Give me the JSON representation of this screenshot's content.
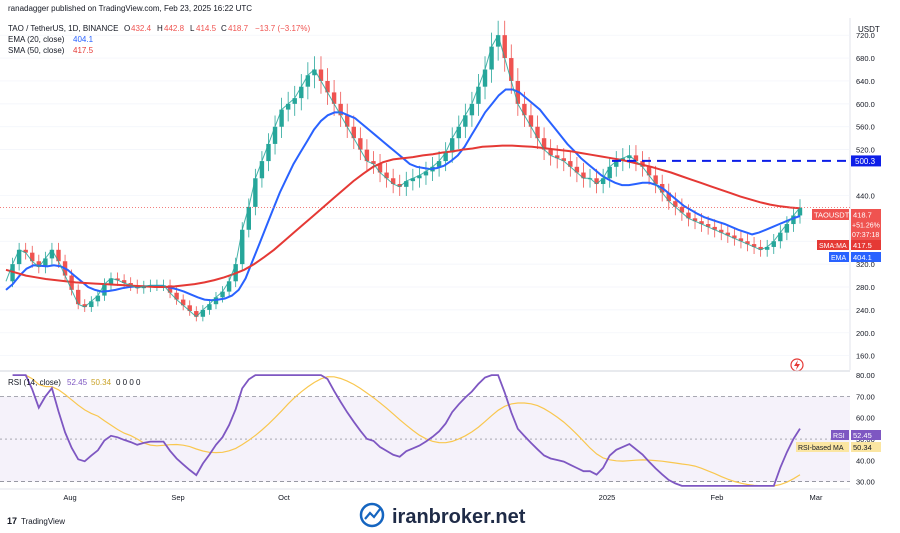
{
  "header": {
    "published": "ranadagger published on TradingView.com, Feb 23, 2025 16:22 UTC",
    "symbol_line": "TAO / TetherUS, 1D, BINANCE",
    "ohlc": {
      "o_label": "O",
      "o": "432.4",
      "h_label": "H",
      "h": "442.8",
      "l_label": "L",
      "l": "414.5",
      "c_label": "C",
      "c": "418.7",
      "change": "−13.7 (−3.17%)"
    },
    "ema_label": "EMA (20, close)",
    "ema_value": "404.1",
    "sma_label": "SMA (50, close)",
    "sma_value": "417.5",
    "currency": "USDT"
  },
  "price_axis": {
    "ticks": [
      "720.0",
      "680.0",
      "640.0",
      "600.0",
      "560.0",
      "520.0",
      "440.0",
      "400.0",
      "360.0",
      "320.0",
      "280.0",
      "240.0",
      "200.0",
      "160.0"
    ],
    "tick_values": [
      720,
      680,
      640,
      600,
      560,
      520,
      440,
      400,
      360,
      320,
      280,
      240,
      200,
      160
    ],
    "range": [
      135,
      750
    ]
  },
  "labels": {
    "level": "500.3",
    "level_value": 500.3,
    "symbol_tag": "TAOUSDT",
    "last_price": "418.7",
    "last_change": "+51.26%",
    "countdown": "07:37:18",
    "sma_tag": "SMA:MA",
    "sma_val": "417.5",
    "ema_tag": "EMA",
    "ema_val": "404.1",
    "rsi_tag": "RSI",
    "rsi_val": "52.45",
    "rsima_tag": "RSI-based MA",
    "rsima_val": "50.34"
  },
  "rsi_header": {
    "label": "RSI (14, close)",
    "rsi": "52.45",
    "ma": "50.34",
    "zeros": "0  0  0  0"
  },
  "rsi_axis": {
    "ticks": [
      "80.00",
      "70.00",
      "60.00",
      "50.00",
      "40.00",
      "30.00"
    ],
    "tick_values": [
      80,
      70,
      60,
      50,
      40,
      30
    ],
    "range": [
      27,
      81
    ]
  },
  "time_axis": {
    "labels": [
      "Aug",
      "Sep",
      "Oct",
      "2025",
      "Feb",
      "Mar"
    ]
  },
  "footer": {
    "brand": "TradingView",
    "watermark": "iranbroker.net"
  },
  "chart_data": {
    "type": "line",
    "title": "TAO / TetherUS, 1D, BINANCE",
    "x_ticks": [
      "Aug",
      "Sep",
      "Oct",
      "2025",
      "Feb",
      "Mar"
    ],
    "ylim": [
      135,
      750
    ],
    "horizontal_level": 500.3,
    "series": [
      {
        "name": "TAOUSDT",
        "color": "#26a69a",
        "values": [
          290,
          320,
          345,
          340,
          325,
          315,
          330,
          345,
          325,
          300,
          275,
          250,
          245,
          255,
          265,
          285,
          295,
          292,
          287,
          283,
          278,
          281,
          283,
          283,
          283,
          270,
          258,
          248,
          238,
          228,
          240,
          250,
          262,
          272,
          290,
          320,
          380,
          420,
          470,
          500,
          530,
          560,
          590,
          600,
          610,
          630,
          650,
          660,
          640,
          620,
          600,
          580,
          560,
          540,
          520,
          500,
          495,
          480,
          470,
          460,
          455,
          465,
          470,
          475,
          482,
          490,
          500,
          515,
          540,
          560,
          580,
          600,
          630,
          660,
          700,
          720,
          680,
          640,
          600,
          580,
          560,
          540,
          520,
          510,
          505,
          500,
          490,
          480,
          470,
          470,
          460,
          470,
          490,
          500,
          505,
          510,
          500,
          490,
          475,
          460,
          445,
          430,
          420,
          410,
          400,
          395,
          390,
          385,
          380,
          375,
          370,
          365,
          360,
          355,
          350,
          345,
          350,
          360,
          375,
          390,
          405,
          418.7
        ]
      },
      {
        "name": "EMA (20, close)",
        "color": "#2962ff",
        "values": [
          275,
          285,
          300,
          312,
          318,
          317,
          316,
          318,
          316,
          310,
          300,
          290,
          280,
          275,
          272,
          273,
          275,
          278,
          280,
          281,
          281,
          281,
          281,
          281,
          279,
          276,
          272,
          267,
          262,
          258,
          257,
          258,
          260,
          265,
          275,
          295,
          325,
          355,
          385,
          415,
          445,
          470,
          495,
          515,
          535,
          555,
          570,
          580,
          585,
          585,
          580,
          575,
          565,
          555,
          545,
          535,
          525,
          515,
          505,
          495,
          490,
          488,
          486,
          488,
          492,
          500,
          510,
          525,
          545,
          565,
          585,
          600,
          615,
          625,
          625,
          620,
          610,
          600,
          590,
          575,
          560,
          545,
          530,
          518,
          505,
          495,
          485,
          475,
          468,
          462,
          458,
          458,
          460,
          462,
          462,
          458,
          452,
          442,
          432,
          422,
          415,
          408,
          402,
          398,
          394,
          390,
          385,
          380,
          376,
          372,
          375,
          380,
          385,
          390,
          395,
          400,
          404.1
        ]
      },
      {
        "name": "SMA (50, close)",
        "color": "#e53935",
        "values": [
          310,
          305,
          300,
          297,
          294,
          292,
          290,
          288,
          287,
          286,
          285,
          284,
          283,
          282,
          281,
          280,
          280,
          281,
          283,
          285,
          288,
          292,
          297,
          303,
          310,
          320,
          332,
          345,
          360,
          375,
          390,
          405,
          420,
          435,
          450,
          465,
          478,
          490,
          498,
          503,
          505,
          507,
          510,
          512,
          515,
          517,
          520,
          522,
          525,
          526,
          527,
          527,
          526,
          525,
          523,
          521,
          519,
          517,
          514,
          511,
          508,
          505,
          502,
          498,
          494,
          490,
          485,
          480,
          474,
          468,
          462,
          456,
          450,
          444,
          438,
          433,
          428,
          424,
          421,
          419,
          417.5
        ]
      }
    ]
  }
}
